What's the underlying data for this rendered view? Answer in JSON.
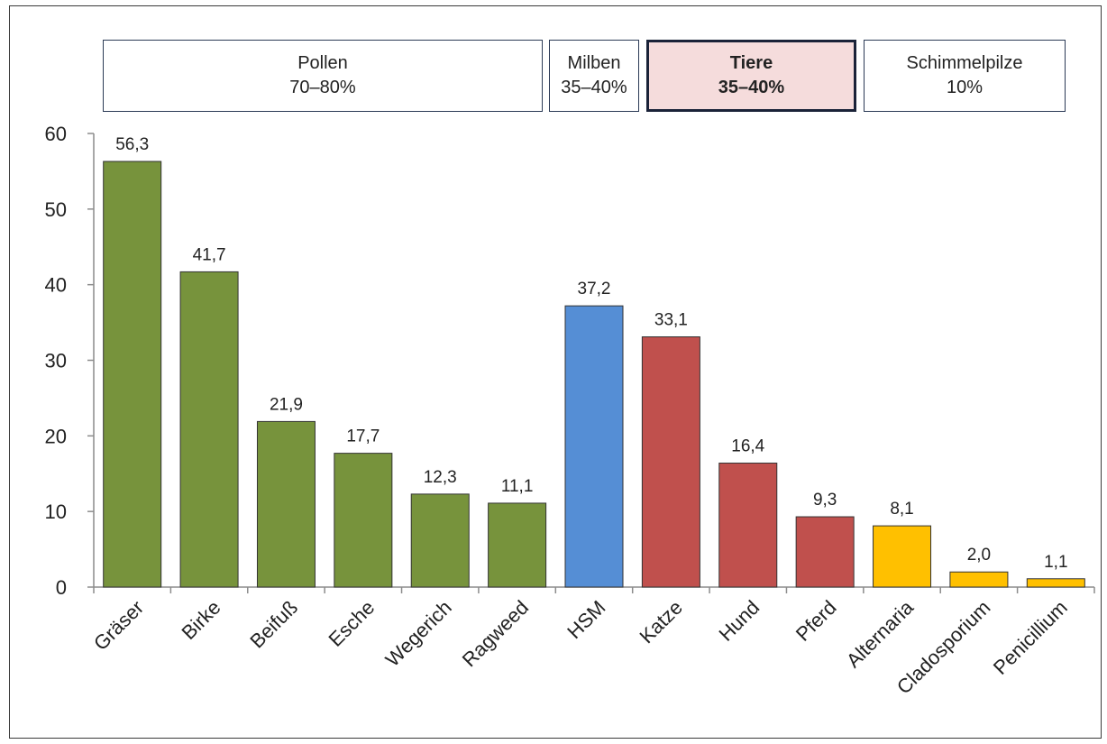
{
  "groups": [
    {
      "name": "Pollen",
      "share": "70–80%",
      "highlight": false
    },
    {
      "name": "Milben",
      "share": "35–40%",
      "highlight": false
    },
    {
      "name": "Tiere",
      "share": "35–40%",
      "highlight": true
    },
    {
      "name": "Schimmelpilze",
      "share": "10%",
      "highlight": false
    }
  ],
  "colors": {
    "pollen": "#77933c",
    "milben": "#558ed5",
    "tiere": "#c0504d",
    "schimmelpilze": "#ffc000",
    "highlight_fill": "#f5dcdc",
    "box_border": "#2b3a55"
  },
  "chart_data": {
    "type": "bar",
    "categories": [
      "Gräser",
      "Birke",
      "Beifuß",
      "Esche",
      "Wegerich",
      "Ragweed",
      "HSM",
      "Katze",
      "Hund",
      "Pferd",
      "Alternaria",
      "Cladosporium",
      "Penicillium"
    ],
    "values": [
      56.3,
      41.7,
      21.9,
      17.7,
      12.3,
      11.1,
      37.2,
      33.1,
      16.4,
      9.3,
      8.1,
      2.0,
      1.1
    ],
    "value_labels": [
      "56,3",
      "41,7",
      "21,9",
      "17,7",
      "12,3",
      "11,1",
      "37,2",
      "33,1",
      "16,4",
      "9,3",
      "8,1",
      "2,0",
      "1,1"
    ],
    "bar_colors": [
      "#77933c",
      "#77933c",
      "#77933c",
      "#77933c",
      "#77933c",
      "#77933c",
      "#558ed5",
      "#c0504d",
      "#c0504d",
      "#c0504d",
      "#ffc000",
      "#ffc000",
      "#ffc000"
    ],
    "title": "",
    "xlabel": "",
    "ylabel": "",
    "ylim": [
      0,
      60
    ],
    "yticks": [
      0,
      10,
      20,
      30,
      40,
      50,
      60
    ],
    "grid": false,
    "legend": "none"
  }
}
